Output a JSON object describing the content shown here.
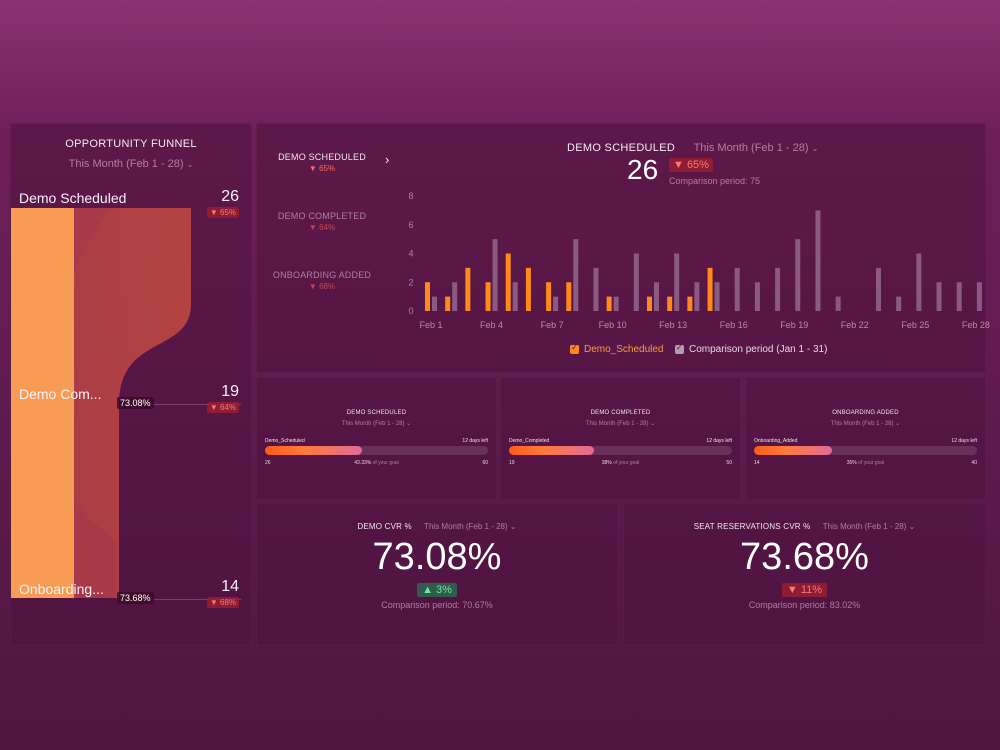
{
  "funnel": {
    "title": "OPPORTUNITY FUNNEL",
    "period": "This Month (Feb 1 - 28)",
    "stages": [
      {
        "label": "Demo Scheduled",
        "value": "26",
        "change": "▼ 65%"
      },
      {
        "label": "Demo Com...",
        "value": "19",
        "change": "▼ 64%",
        "conversion": "73.08%"
      },
      {
        "label": "Onboarding...",
        "value": "14",
        "change": "▼ 68%",
        "conversion": "73.68%"
      }
    ]
  },
  "bar_panel": {
    "side_list": [
      {
        "label": "DEMO SCHEDULED",
        "change": "▼ 65%"
      },
      {
        "label": "DEMO COMPLETED",
        "change": "▼ 64%"
      },
      {
        "label": "ONBOARDING ADDED",
        "change": "▼ 68%"
      }
    ],
    "title": "DEMO SCHEDULED",
    "period": "This Month (Feb 1 - 28)",
    "value": "26",
    "change": "▼ 65%",
    "comparison": "Comparison period: 75",
    "legend": [
      {
        "label": "Demo_Scheduled",
        "color": "#ff8a1a"
      },
      {
        "label": "Comparison period (Jan 1 - 31)",
        "color": "#b79cb0"
      }
    ]
  },
  "chart_data": {
    "type": "bar",
    "categories": [
      "Feb 1",
      "Feb 2",
      "Feb 3",
      "Feb 4",
      "Feb 5",
      "Feb 6",
      "Feb 7",
      "Feb 8",
      "Feb 9",
      "Feb 10",
      "Feb 11",
      "Feb 12",
      "Feb 13",
      "Feb 14",
      "Feb 15",
      "Feb 16",
      "Feb 17",
      "Feb 18",
      "Feb 19",
      "Feb 20",
      "Feb 21",
      "Feb 22",
      "Feb 23",
      "Feb 24",
      "Feb 25",
      "Feb 26",
      "Feb 27",
      "Feb 28"
    ],
    "x_tick_labels": [
      "Feb 1",
      "Feb 4",
      "Feb 7",
      "Feb 10",
      "Feb 13",
      "Feb 16",
      "Feb 19",
      "Feb 22",
      "Feb 25",
      "Feb 28"
    ],
    "y_ticks": [
      0,
      2,
      4,
      6,
      8
    ],
    "ylim": [
      0,
      8
    ],
    "series": [
      {
        "name": "Demo_Scheduled",
        "color": "#ff8a1a",
        "values": [
          2,
          1,
          3,
          2,
          4,
          3,
          2,
          2,
          0,
          1,
          0,
          1,
          1,
          1,
          3,
          0,
          0,
          0,
          0,
          0,
          0,
          0,
          0,
          0,
          0,
          0,
          0,
          0
        ]
      },
      {
        "name": "Comparison period (Jan 1 - 31)",
        "color": "#8a5a80",
        "values": [
          1,
          2,
          0,
          5,
          2,
          0,
          1,
          5,
          3,
          1,
          4,
          2,
          4,
          2,
          2,
          3,
          2,
          3,
          5,
          7,
          1,
          0,
          3,
          1,
          4,
          2,
          2,
          2
        ]
      }
    ]
  },
  "goals": [
    {
      "title": "DEMO SCHEDULED",
      "period": "This Month (Feb 1 - 28)",
      "metric": "Demo_Scheduled",
      "days_left": "12 days left",
      "current": "26",
      "percent_text": "43.33%",
      "of_goal": "of your goal",
      "target": "60",
      "progress": 0.4333
    },
    {
      "title": "DEMO COMPLETED",
      "period": "This Month (Feb 1 - 28)",
      "metric": "Demo_Completed",
      "days_left": "12 days left",
      "current": "19",
      "percent_text": "38%",
      "of_goal": "of your goal",
      "target": "50",
      "progress": 0.38
    },
    {
      "title": "ONBOARDING ADDED",
      "period": "This Month (Feb 1 - 28)",
      "metric": "Onboarding_Added",
      "days_left": "12 days left",
      "current": "14",
      "percent_text": "35%",
      "of_goal": "of your goal",
      "target": "40",
      "progress": 0.35
    }
  ],
  "cvr": [
    {
      "title": "DEMO CVR %",
      "period": "This Month (Feb 1 - 28)",
      "value": "73.08%",
      "change": "▲ 3%",
      "comparison": "Comparison period: 70.67%"
    },
    {
      "title": "SEAT RESERVATIONS CVR %",
      "period": "This Month (Feb 1 - 28)",
      "value": "73.68%",
      "change": "▼ 11%",
      "comparison": "Comparison period: 83.02%"
    }
  ]
}
